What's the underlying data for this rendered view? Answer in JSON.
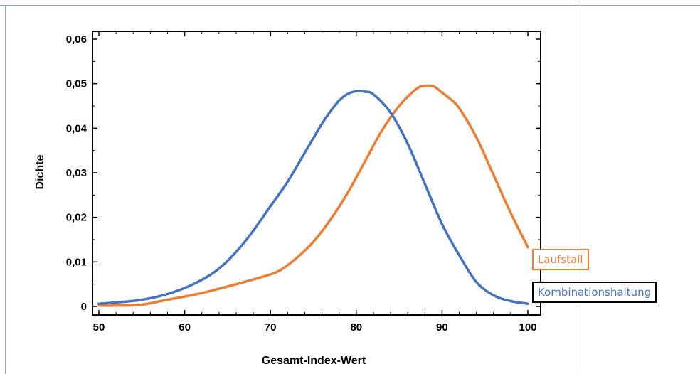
{
  "chart_data": {
    "type": "line",
    "xlabel": "Gesamt-Index-Wert",
    "ylabel": "Dichte",
    "xlim": [
      50,
      100
    ],
    "ylim": [
      0,
      0.0615
    ],
    "x_ticks": [
      "50",
      "60",
      "70",
      "80",
      "90",
      "100"
    ],
    "y_ticks": [
      "0",
      "0,01",
      "0,02",
      "0,03",
      "0,04",
      "0,05",
      "0,06"
    ],
    "grid": false,
    "legend_position": "right of plot, next to line ends",
    "series": [
      {
        "name": "Laufstall",
        "color": "#ed7d31",
        "x": [
          50,
          52,
          55,
          58,
          62,
          66,
          69,
          71,
          73,
          75,
          77,
          79,
          81,
          83,
          85,
          87,
          88,
          89,
          90,
          91,
          92,
          94,
          96,
          98,
          100
        ],
        "y": [
          0.0002,
          0.0002,
          0.0004,
          0.0015,
          0.003,
          0.005,
          0.0066,
          0.008,
          0.0108,
          0.0145,
          0.0195,
          0.0255,
          0.0325,
          0.0395,
          0.045,
          0.0488,
          0.0495,
          0.0494,
          0.048,
          0.0465,
          0.0445,
          0.038,
          0.0295,
          0.021,
          0.0133
        ]
      },
      {
        "name": "Kombinationshaltung",
        "color": "#4472c4",
        "x": [
          50,
          52,
          55,
          58,
          61,
          64,
          67,
          70,
          72,
          74,
          76,
          77,
          78,
          79,
          80,
          81,
          82,
          84,
          86,
          88,
          90,
          92,
          94,
          96,
          98,
          100
        ],
        "y": [
          0.0006,
          0.0009,
          0.0015,
          0.0028,
          0.005,
          0.0085,
          0.0145,
          0.0225,
          0.028,
          0.0345,
          0.041,
          0.0438,
          0.0462,
          0.0477,
          0.0483,
          0.0482,
          0.0476,
          0.0435,
          0.0365,
          0.0275,
          0.0185,
          0.0115,
          0.0055,
          0.0025,
          0.0012,
          0.0006
        ]
      }
    ]
  }
}
